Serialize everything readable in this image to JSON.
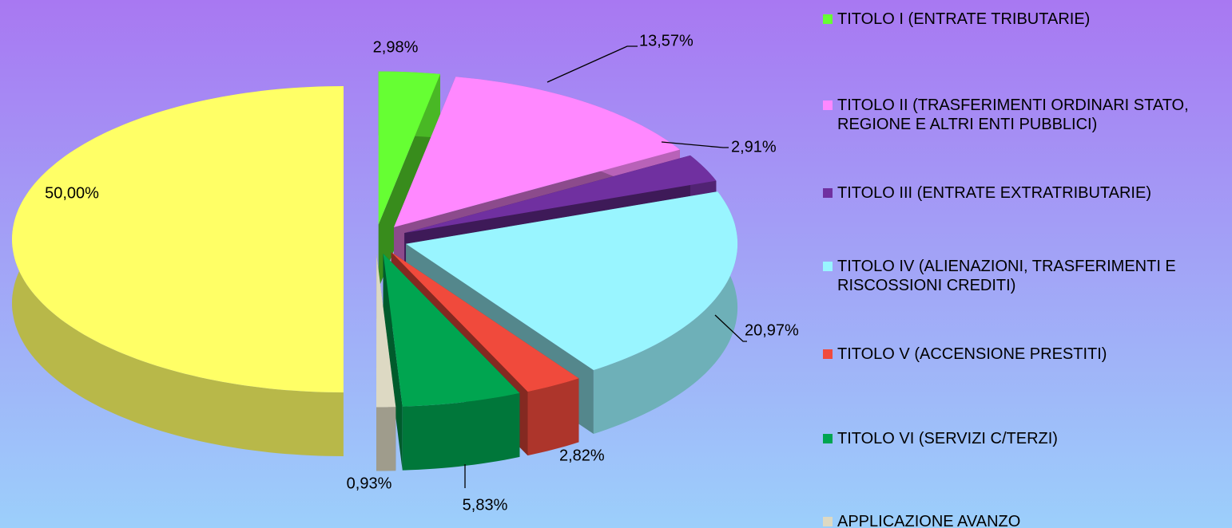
{
  "chart_data": {
    "type": "pie3d",
    "categories": [
      "TITOLO I (ENTRATE TRIBUTARIE)",
      "TITOLO II (TRASFERIMENTI ORDINARI STATO, REGIONE E ALTRI ENTI PUBBLICI)",
      "TITOLO III (ENTRATE EXTRATRIBUTARIE)",
      "TITOLO IV (ALIENAZIONI, TRASFERIMENTI E RISCOSSIONI CREDITI)",
      "TITOLO V (ACCENSIONE PRESTITI)",
      "TITOLO VI (SERVIZI C/TERZI)",
      "APPLICAZIONE AVANZO",
      null
    ],
    "values": [
      2.98,
      13.57,
      2.91,
      20.97,
      2.82,
      5.83,
      0.93,
      50.0
    ],
    "value_labels": [
      "2,98%",
      "13,57%",
      "2,91%",
      "20,97%",
      "2,82%",
      "5,83%",
      "0,93%",
      "50,00%"
    ],
    "colors": [
      "#66ff33",
      "#ff88ff",
      "#7030a0",
      "#99f5ff",
      "#f04a3c",
      "#00a550",
      "#ddd9c3",
      "#ffff66"
    ],
    "legend": "right"
  }
}
